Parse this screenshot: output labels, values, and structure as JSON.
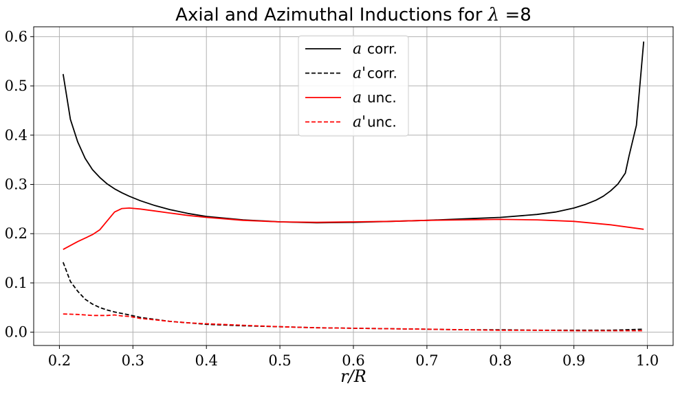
{
  "chart_data": {
    "type": "line",
    "title_prefix": "Axial and Azimuthal Inductions for ",
    "title_symbol": "λ",
    "title_suffix": " =8",
    "xlabel": "r/R",
    "ylabel": "",
    "xlim": [
      0.165,
      1.035
    ],
    "ylim": [
      -0.027,
      0.62
    ],
    "xticks": [
      0.2,
      0.3,
      0.4,
      0.5,
      0.6,
      0.7,
      0.8,
      0.9,
      1.0
    ],
    "xtick_labels": [
      "0.2",
      "0.3",
      "0.4",
      "0.5",
      "0.6",
      "0.7",
      "0.8",
      "0.9",
      "1.0"
    ],
    "yticks": [
      0.0,
      0.1,
      0.2,
      0.3,
      0.4,
      0.5,
      0.6
    ],
    "ytick_labels": [
      "0.0",
      "0.1",
      "0.2",
      "0.3",
      "0.4",
      "0.5",
      "0.6"
    ],
    "grid": true,
    "legend_position": "top-center",
    "series": [
      {
        "name": "a corr.",
        "legend_symbol": "a",
        "legend_text": "corr.",
        "color": "#000000",
        "dash": "solid",
        "x": [
          0.205,
          0.215,
          0.225,
          0.235,
          0.245,
          0.255,
          0.265,
          0.275,
          0.285,
          0.295,
          0.31,
          0.33,
          0.35,
          0.375,
          0.4,
          0.45,
          0.5,
          0.55,
          0.6,
          0.65,
          0.7,
          0.75,
          0.8,
          0.85,
          0.875,
          0.9,
          0.915,
          0.93,
          0.94,
          0.95,
          0.96,
          0.97,
          0.975,
          0.985,
          0.995
        ],
        "y": [
          0.524,
          0.432,
          0.386,
          0.353,
          0.33,
          0.314,
          0.301,
          0.291,
          0.283,
          0.276,
          0.267,
          0.257,
          0.249,
          0.241,
          0.235,
          0.228,
          0.224,
          0.222,
          0.223,
          0.225,
          0.227,
          0.23,
          0.233,
          0.239,
          0.244,
          0.252,
          0.259,
          0.268,
          0.276,
          0.287,
          0.301,
          0.323,
          0.358,
          0.42,
          0.59
        ]
      },
      {
        "name": "a' corr.",
        "legend_symbol": "a'",
        "legend_text": "corr.",
        "color": "#000000",
        "dash": "dashed",
        "x": [
          0.205,
          0.215,
          0.225,
          0.235,
          0.245,
          0.255,
          0.265,
          0.275,
          0.285,
          0.295,
          0.31,
          0.33,
          0.35,
          0.375,
          0.4,
          0.45,
          0.5,
          0.55,
          0.6,
          0.65,
          0.7,
          0.75,
          0.8,
          0.85,
          0.9,
          0.95,
          0.995
        ],
        "y": [
          0.142,
          0.103,
          0.083,
          0.067,
          0.057,
          0.05,
          0.045,
          0.041,
          0.038,
          0.035,
          0.03,
          0.026,
          0.022,
          0.019,
          0.016,
          0.013,
          0.011,
          0.009,
          0.008,
          0.007,
          0.006,
          0.005,
          0.005,
          0.004,
          0.004,
          0.004,
          0.006
        ]
      },
      {
        "name": "a unc.",
        "legend_symbol": "a",
        "legend_text": "unc.",
        "color": "#ff0000",
        "dash": "solid",
        "x": [
          0.205,
          0.215,
          0.225,
          0.235,
          0.245,
          0.255,
          0.265,
          0.275,
          0.285,
          0.295,
          0.31,
          0.33,
          0.35,
          0.375,
          0.4,
          0.45,
          0.5,
          0.55,
          0.6,
          0.65,
          0.7,
          0.75,
          0.8,
          0.85,
          0.9,
          0.95,
          0.995
        ],
        "y": [
          0.168,
          0.176,
          0.184,
          0.191,
          0.198,
          0.208,
          0.226,
          0.244,
          0.251,
          0.252,
          0.25,
          0.246,
          0.242,
          0.237,
          0.233,
          0.227,
          0.224,
          0.223,
          0.224,
          0.225,
          0.227,
          0.228,
          0.229,
          0.228,
          0.225,
          0.218,
          0.209
        ]
      },
      {
        "name": "a' unc.",
        "legend_symbol": "a'",
        "legend_text": "unc.",
        "color": "#ff0000",
        "dash": "dashed",
        "x": [
          0.205,
          0.225,
          0.245,
          0.265,
          0.275,
          0.285,
          0.295,
          0.31,
          0.33,
          0.35,
          0.375,
          0.4,
          0.45,
          0.5,
          0.55,
          0.6,
          0.65,
          0.7,
          0.75,
          0.8,
          0.85,
          0.9,
          0.95,
          0.995
        ],
        "y": [
          0.037,
          0.036,
          0.034,
          0.034,
          0.035,
          0.033,
          0.032,
          0.028,
          0.025,
          0.022,
          0.019,
          0.017,
          0.014,
          0.011,
          0.009,
          0.008,
          0.007,
          0.006,
          0.005,
          0.004,
          0.004,
          0.003,
          0.003,
          0.003
        ]
      }
    ]
  }
}
